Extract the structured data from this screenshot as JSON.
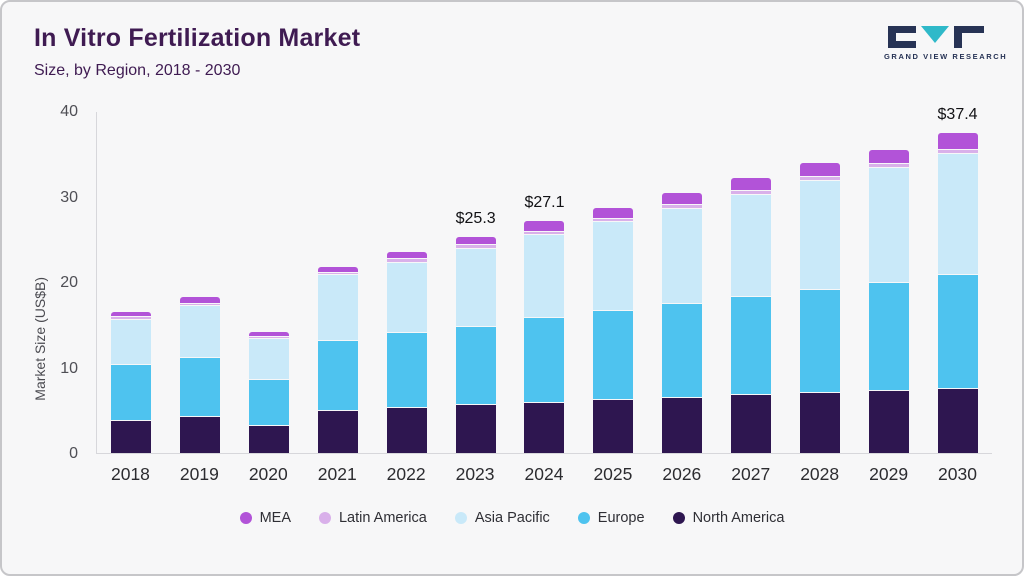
{
  "page": {
    "title": "In Vitro Fertilization Market",
    "subtitle": "Size, by Region, 2018 - 2030"
  },
  "logo": {
    "text": "GRAND VIEW RESEARCH"
  },
  "chart_data": {
    "type": "bar",
    "stacked": true,
    "title": "In Vitro Fertilization Market Size, by Region, 2018 - 2030",
    "xlabel": "",
    "ylabel": "Market Size (US$B)",
    "ylim": [
      0,
      40
    ],
    "yticks": [
      0,
      10,
      20,
      30,
      40
    ],
    "grid": false,
    "legend_position": "bottom",
    "categories": [
      "2018",
      "2019",
      "2020",
      "2021",
      "2022",
      "2023",
      "2024",
      "2025",
      "2026",
      "2027",
      "2028",
      "2029",
      "2030"
    ],
    "series": [
      {
        "name": "North America",
        "color": "#2e1650",
        "values": [
          3.9,
          4.3,
          3.3,
          5.0,
          5.4,
          5.7,
          6.0,
          6.3,
          6.5,
          6.9,
          7.1,
          7.4,
          7.6
        ]
      },
      {
        "name": "Europe",
        "color": "#4ec3ef",
        "values": [
          6.5,
          6.9,
          5.3,
          8.2,
          8.7,
          9.2,
          9.9,
          10.4,
          11.1,
          11.5,
          12.1,
          12.6,
          13.3
        ]
      },
      {
        "name": "Asia Pacific",
        "color": "#c9e9f9",
        "values": [
          5.3,
          6.1,
          4.8,
          7.7,
          8.3,
          9.1,
          9.7,
          10.4,
          11.1,
          11.9,
          12.7,
          13.4,
          14.2
        ]
      },
      {
        "name": "Latin America",
        "color": "#d9b0ea",
        "values": [
          0.3,
          0.3,
          0.3,
          0.3,
          0.4,
          0.4,
          0.4,
          0.4,
          0.4,
          0.5,
          0.5,
          0.5,
          0.5
        ]
      },
      {
        "name": "MEA",
        "color": "#b253d8",
        "values": [
          0.5,
          0.6,
          0.5,
          0.6,
          0.7,
          0.9,
          1.1,
          1.2,
          1.3,
          1.4,
          1.5,
          1.6,
          1.8
        ]
      }
    ],
    "totals": [
      16.5,
      18.2,
      14.2,
      21.8,
      23.5,
      25.3,
      27.1,
      28.7,
      30.4,
      32.2,
      33.9,
      35.5,
      37.4
    ],
    "annotations": [
      null,
      null,
      null,
      null,
      null,
      "$25.3",
      "$27.1",
      null,
      null,
      null,
      null,
      null,
      "$37.4"
    ],
    "legend": [
      "MEA",
      "Latin America",
      "Asia Pacific",
      "Europe",
      "North America"
    ]
  },
  "colors": {
    "title": "#3f1b52",
    "background": "#f7f7f8",
    "axis": "#d7d7db",
    "logo_dark": "#273355",
    "logo_teal": "#2fb9c9"
  }
}
